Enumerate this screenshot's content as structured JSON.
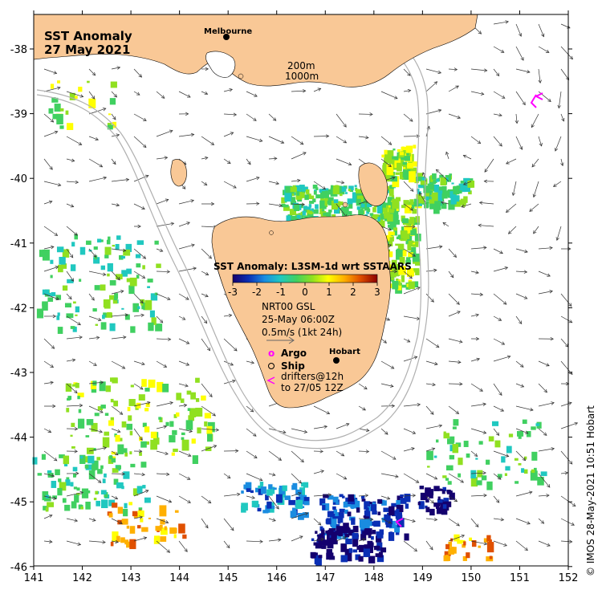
{
  "title": {
    "line1": "SST Anomaly",
    "line2": "27 May 2021"
  },
  "colorbar": {
    "title": "SST Anomaly: L3SM-1d wrt SSTAARS",
    "ticks": [
      "-3",
      "-2",
      "-1",
      "0",
      "1",
      "2",
      "3"
    ]
  },
  "current_legend": {
    "line1": "NRT00 GSL",
    "line2": "25-May 06:00Z",
    "line3": "0.5m/s (1kt 24h)"
  },
  "marker_legend": {
    "argo_symbol": "o",
    "argo_label": "Argo",
    "ship_label": "Ship",
    "drifters_line1": "drifters@12h",
    "drifters_line2": "to 27/05 12Z"
  },
  "places": {
    "melbourne": "Melbourne",
    "hobart": "Hobart"
  },
  "isobaths": {
    "shallow": "200m",
    "deep": "1000m"
  },
  "axes": {
    "x_ticks": [
      "141",
      "142",
      "143",
      "144",
      "145",
      "146",
      "147",
      "148",
      "149",
      "150",
      "151",
      "152"
    ],
    "y_ticks": [
      "-38",
      "-39",
      "-40",
      "-41",
      "-42",
      "-43",
      "-44",
      "-45",
      "-46"
    ]
  },
  "credit": "© IMOS 28-May-2021 10:51 Hobart",
  "colors": {
    "land": "#f9c896",
    "ocean": "#ffffff",
    "argo": "#ff00ff",
    "drifter": "#ff00ff",
    "colormap": [
      "#14006e",
      "#0a2fb4",
      "#1a8ce0",
      "#20c8c0",
      "#40d060",
      "#90e020",
      "#ffff00",
      "#ffb000",
      "#e05000",
      "#8b0000"
    ]
  }
}
